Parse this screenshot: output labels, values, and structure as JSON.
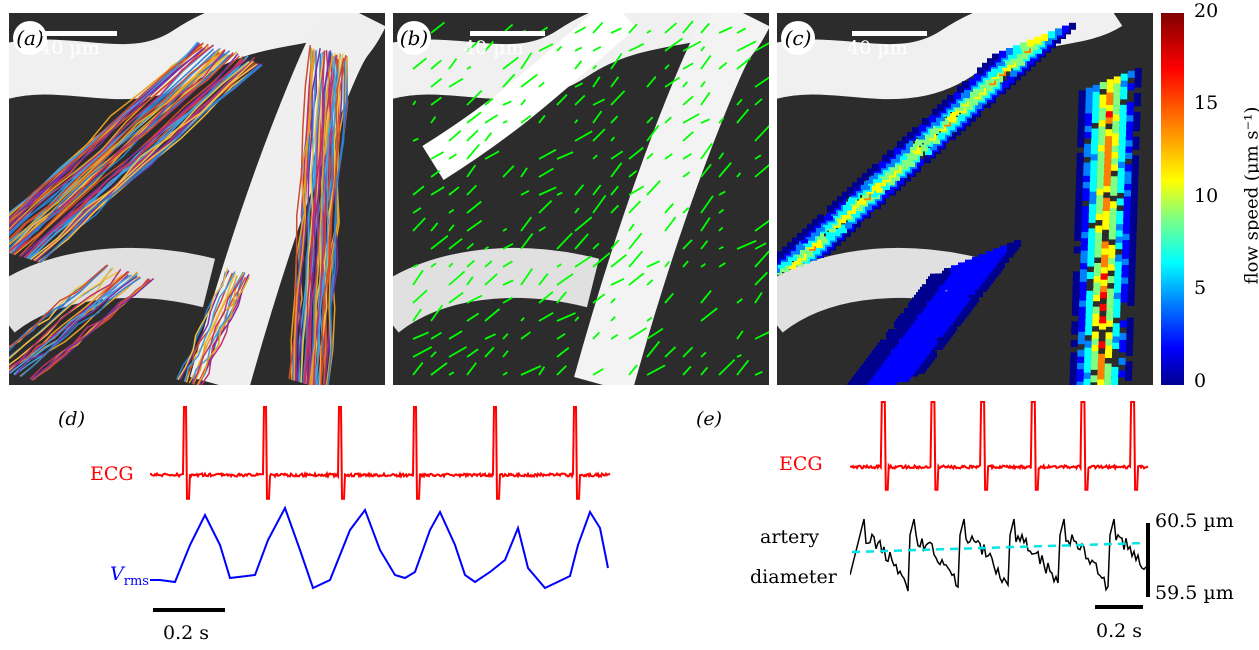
{
  "panels": {
    "a": {
      "label": "(a)",
      "scale": "40 µm"
    },
    "b": {
      "label": "(b)",
      "scale": "40 µm"
    },
    "c": {
      "label": "(c)",
      "scale": "40 µm"
    }
  },
  "colorbar": {
    "ticks": [
      "20",
      "15",
      "10",
      "5",
      "0"
    ],
    "label": "flow speed (µm s⁻¹)"
  },
  "panel_d": {
    "label": "(d)",
    "ecg_label": "ECG",
    "vrms_label_main": "V",
    "vrms_label_sub": "rms",
    "time_scale": "0.2 s"
  },
  "panel_e": {
    "label": "(e)",
    "ecg_label": "ECG",
    "artery_label": "artery",
    "diameter_label": "diameter",
    "top_value": "60.5 µm",
    "bottom_value": "59.5 µm",
    "time_scale": "0.2 s"
  },
  "colors": {
    "ecg": "#ff0000",
    "vrms": "#0000ff",
    "diameter": "#000000",
    "mean": "#00e5e5",
    "vectors": "#00ff00"
  }
}
